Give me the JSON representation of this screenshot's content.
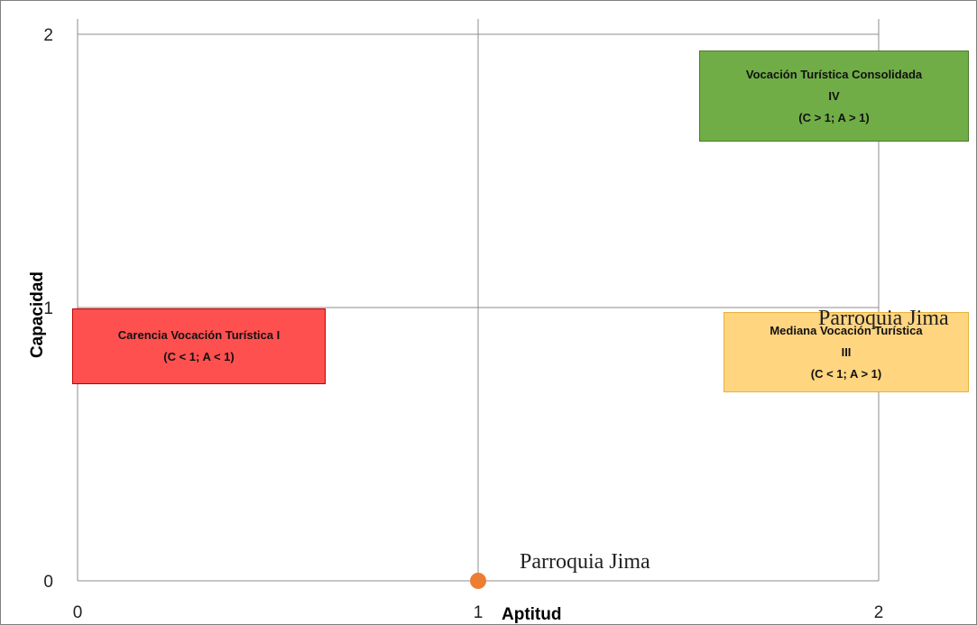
{
  "chart_data": {
    "type": "scatter",
    "xlabel": "Aptitud",
    "ylabel": "Capacidad",
    "xlim": [
      0,
      2
    ],
    "ylim": [
      0,
      2
    ],
    "x_ticks": [
      "0",
      "1",
      "2"
    ],
    "y_ticks": [
      "0",
      "1",
      "2"
    ],
    "grid": true,
    "points": [
      {
        "x": 1,
        "y": 0,
        "label": "Parroquia Jima",
        "color": "#ed7d31"
      }
    ],
    "extra_label": {
      "text": "Parroquia Jima"
    },
    "regions": [
      {
        "id": "I",
        "lines": [
          "Carencia Vocación Turística I",
          "(C < 1; A < 1)"
        ],
        "color": "#ff5050",
        "border": "#c00000"
      },
      {
        "id": "III",
        "lines": [
          "Mediana Vocación Turística",
          "III",
          "(C < 1; A  > 1)"
        ],
        "color": "#ffd580",
        "border": "#e6b43c"
      },
      {
        "id": "IV",
        "lines": [
          "Vocación Turística Consolidada",
          "IV",
          "(C > 1; A > 1)"
        ],
        "color": "#70ad47",
        "border": "#4a7a2c"
      }
    ]
  }
}
